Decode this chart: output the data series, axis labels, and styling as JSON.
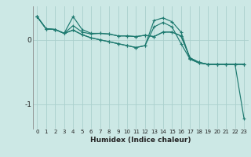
{
  "xlabel": "Humidex (Indice chaleur)",
  "background_color": "#cce8e5",
  "grid_color": "#aad0cc",
  "line_color": "#1e7a70",
  "x_ticks": [
    0,
    1,
    2,
    3,
    4,
    5,
    6,
    7,
    8,
    9,
    10,
    11,
    12,
    13,
    14,
    15,
    16,
    17,
    18,
    19,
    20,
    21,
    22,
    23
  ],
  "y_ticks": [
    0,
    -1
  ],
  "xlim": [
    -0.5,
    23.5
  ],
  "ylim": [
    -1.38,
    0.52
  ],
  "series": [
    [
      0.36,
      0.17,
      0.16,
      0.1,
      0.36,
      0.16,
      0.1,
      0.1,
      0.09,
      0.06,
      0.06,
      0.05,
      0.07,
      0.05,
      0.12,
      0.12,
      0.06,
      -0.28,
      -0.35,
      -0.38,
      -0.38,
      -0.38,
      -0.38,
      -1.22
    ],
    [
      0.36,
      0.17,
      0.16,
      0.1,
      0.22,
      0.12,
      0.09,
      0.1,
      0.09,
      0.06,
      0.06,
      0.05,
      0.07,
      0.05,
      0.12,
      0.12,
      0.06,
      -0.28,
      -0.35,
      -0.38,
      -0.38,
      -0.38,
      -0.38,
      -0.38
    ],
    [
      0.36,
      0.17,
      0.16,
      0.1,
      0.15,
      0.08,
      0.03,
      0.0,
      -0.03,
      -0.06,
      -0.09,
      -0.12,
      -0.09,
      0.2,
      0.27,
      0.2,
      -0.06,
      -0.3,
      -0.36,
      -0.38,
      -0.38,
      -0.38,
      -0.38,
      -0.38
    ],
    [
      0.36,
      0.17,
      0.16,
      0.1,
      0.15,
      0.08,
      0.03,
      0.0,
      -0.03,
      -0.06,
      -0.09,
      -0.12,
      -0.09,
      0.3,
      0.34,
      0.28,
      0.12,
      -0.3,
      -0.36,
      -0.38,
      -0.38,
      -0.38,
      -0.38,
      -0.38
    ]
  ]
}
